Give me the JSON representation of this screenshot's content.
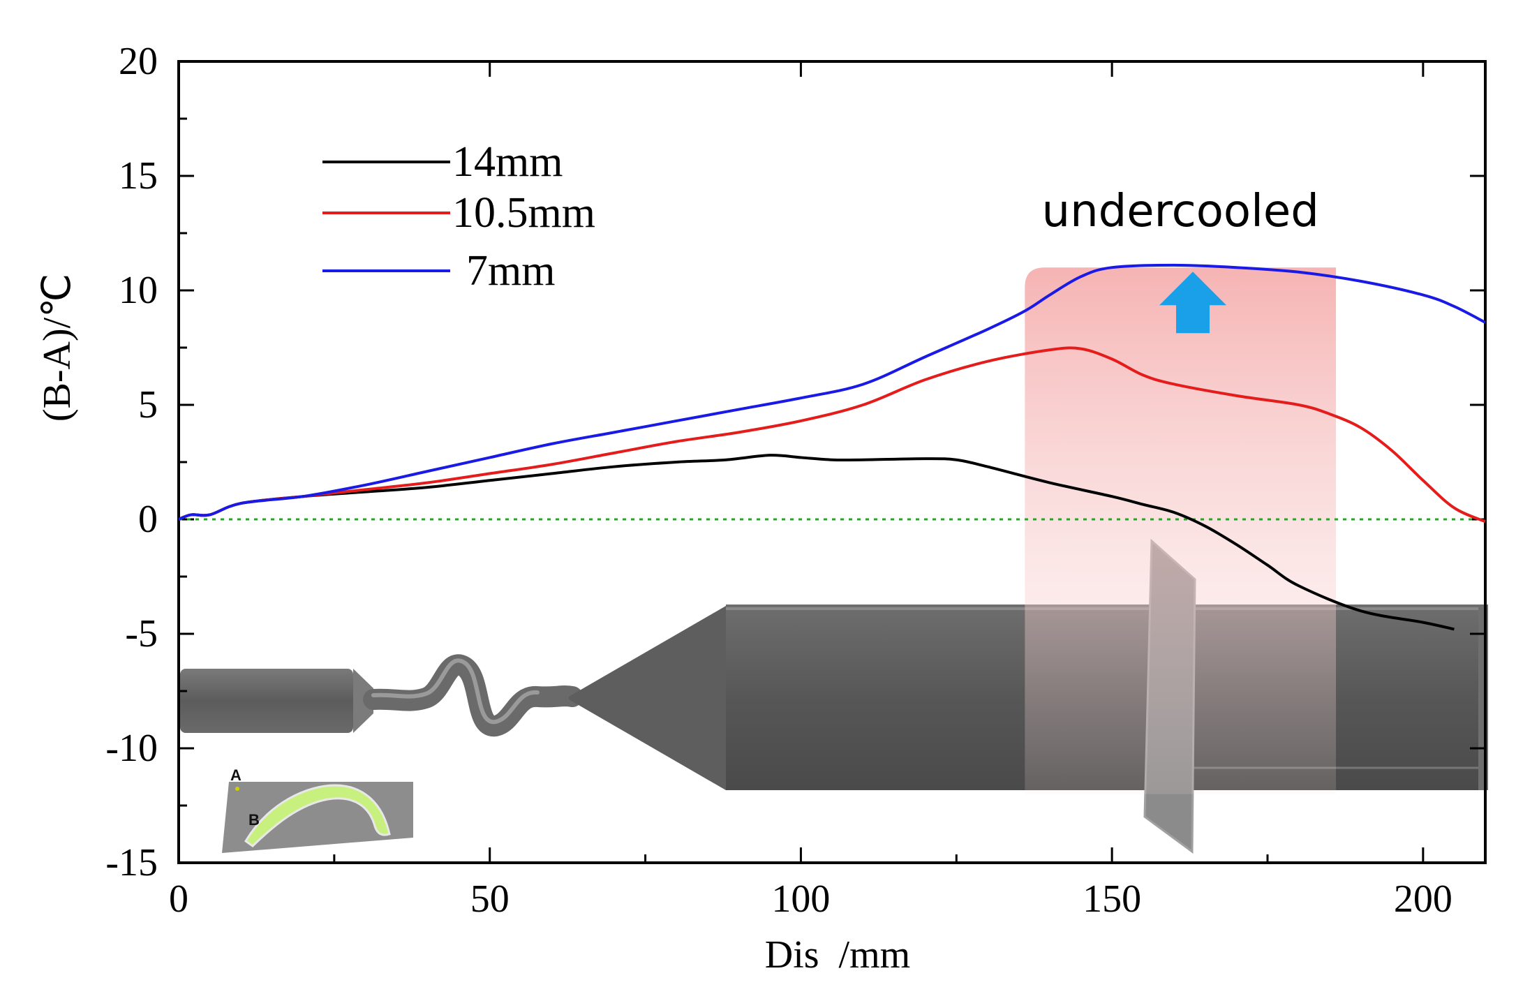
{
  "chart_data": {
    "type": "line",
    "title": "",
    "xlabel": "Dis  /mm",
    "ylabel": "(B-A)/℃",
    "xlim": [
      0,
      210
    ],
    "ylim": [
      -15,
      20
    ],
    "xticks": [
      0,
      50,
      100,
      150,
      200
    ],
    "yticks": [
      -15,
      -10,
      -5,
      0,
      5,
      10,
      15,
      20
    ],
    "xtick_labels": [
      "0",
      "50",
      "100",
      "150",
      "200"
    ],
    "ytick_labels": [
      "-15",
      "-10",
      "-5",
      "0",
      "5",
      "10",
      "15",
      "20"
    ],
    "grid": false,
    "legend_position": "top-left",
    "reference_line": {
      "y": 0,
      "style": "dotted",
      "color": "#33aa33"
    },
    "annotation": {
      "text": "undercooled",
      "x_range": [
        136,
        186
      ],
      "color": "#f7b7b7",
      "arrow_color": "#1aa0e8"
    },
    "inset_labels": [
      "A",
      "B"
    ],
    "series": [
      {
        "name": "14mm",
        "color": "#000000",
        "x": [
          0,
          2,
          5,
          10,
          20,
          30,
          40,
          50,
          60,
          70,
          80,
          88,
          95,
          100,
          105,
          110,
          120,
          125,
          130,
          140,
          150,
          155,
          160,
          165,
          170,
          175,
          180,
          190,
          200,
          205
        ],
        "y": [
          0.0,
          0.2,
          0.2,
          0.7,
          1.0,
          1.2,
          1.4,
          1.7,
          2.0,
          2.3,
          2.5,
          2.6,
          2.8,
          2.7,
          2.6,
          2.6,
          2.65,
          2.6,
          2.3,
          1.6,
          1.0,
          0.65,
          0.3,
          -0.3,
          -1.1,
          -2.0,
          -2.9,
          -4.0,
          -4.5,
          -4.8
        ]
      },
      {
        "name": "10.5mm",
        "color": "#e51c1c",
        "x": [
          0,
          2,
          5,
          10,
          20,
          30,
          40,
          50,
          60,
          70,
          80,
          90,
          100,
          110,
          120,
          130,
          140,
          145,
          150,
          155,
          160,
          170,
          180,
          185,
          190,
          195,
          200,
          205,
          210
        ],
        "y": [
          0.0,
          0.2,
          0.2,
          0.7,
          1.0,
          1.3,
          1.6,
          2.0,
          2.4,
          2.9,
          3.4,
          3.8,
          4.3,
          5.0,
          6.1,
          6.9,
          7.4,
          7.45,
          7.0,
          6.3,
          5.9,
          5.4,
          5.0,
          4.6,
          4.0,
          3.0,
          1.7,
          0.5,
          -0.1
        ]
      },
      {
        "name": "7mm",
        "color": "#1a1ae6",
        "x": [
          0,
          2,
          5,
          10,
          20,
          30,
          40,
          50,
          60,
          70,
          80,
          90,
          100,
          110,
          120,
          130,
          136,
          140,
          145,
          150,
          160,
          170,
          180,
          190,
          200,
          205,
          210
        ],
        "y": [
          0.0,
          0.2,
          0.2,
          0.7,
          1.0,
          1.5,
          2.1,
          2.7,
          3.3,
          3.8,
          4.3,
          4.8,
          5.3,
          5.9,
          7.1,
          8.3,
          9.1,
          9.8,
          10.6,
          11.0,
          11.1,
          11.0,
          10.8,
          10.4,
          9.8,
          9.3,
          8.6
        ]
      }
    ]
  }
}
